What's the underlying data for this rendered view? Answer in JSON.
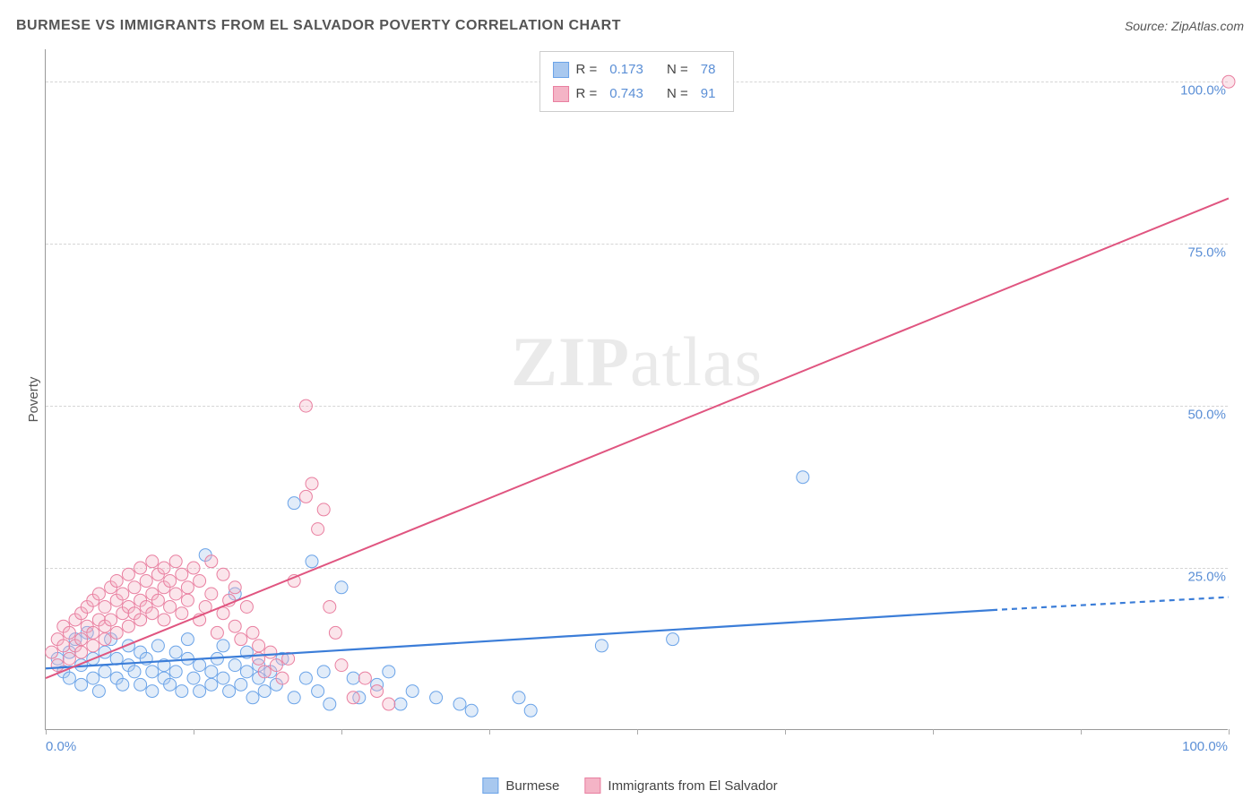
{
  "header": {
    "title": "BURMESE VS IMMIGRANTS FROM EL SALVADOR POVERTY CORRELATION CHART",
    "source_prefix": "Source: ",
    "source": "ZipAtlas.com"
  },
  "watermark": {
    "part1": "ZIP",
    "part2": "atlas"
  },
  "chart": {
    "type": "scatter",
    "ylabel": "Poverty",
    "xlim": [
      0,
      100
    ],
    "ylim": [
      0,
      105
    ],
    "background_color": "#ffffff",
    "grid_color": "#d5d5d5",
    "axis_color": "#999999",
    "tick_label_color": "#5b8fd6",
    "tick_fontsize": 15,
    "ylabel_fontsize": 15,
    "yticks": [
      {
        "value": 25,
        "label": "25.0%"
      },
      {
        "value": 50,
        "label": "50.0%"
      },
      {
        "value": 75,
        "label": "75.0%"
      },
      {
        "value": 100,
        "label": "100.0%"
      }
    ],
    "xtick_label_left": "0.0%",
    "xtick_label_right": "100.0%",
    "xtick_positions": [
      0,
      12.5,
      25,
      37.5,
      50,
      62.5,
      75,
      87.5,
      100
    ],
    "marker_radius": 7,
    "marker_stroke_width": 1,
    "marker_fill_opacity": 0.35,
    "series": [
      {
        "id": "burmese",
        "label": "Burmese",
        "color_stroke": "#6aa3e8",
        "color_fill": "#a8c8ef",
        "R": "0.173",
        "N": "78",
        "regression": {
          "x1": 0,
          "y1": 9.5,
          "x2": 80,
          "y2": 18.5,
          "dash_x2": 100,
          "dash_y2": 20.5,
          "color": "#3b7dd8",
          "width": 2.2
        },
        "points": [
          [
            1,
            11
          ],
          [
            1.5,
            9
          ],
          [
            2,
            12
          ],
          [
            2,
            8
          ],
          [
            2.5,
            14
          ],
          [
            3,
            10
          ],
          [
            3,
            7
          ],
          [
            3.5,
            15
          ],
          [
            4,
            11
          ],
          [
            4,
            8
          ],
          [
            4.5,
            6
          ],
          [
            5,
            12
          ],
          [
            5,
            9
          ],
          [
            5.5,
            14
          ],
          [
            6,
            8
          ],
          [
            6,
            11
          ],
          [
            6.5,
            7
          ],
          [
            7,
            13
          ],
          [
            7,
            10
          ],
          [
            7.5,
            9
          ],
          [
            8,
            12
          ],
          [
            8,
            7
          ],
          [
            8.5,
            11
          ],
          [
            9,
            9
          ],
          [
            9,
            6
          ],
          [
            9.5,
            13
          ],
          [
            10,
            10
          ],
          [
            10,
            8
          ],
          [
            10.5,
            7
          ],
          [
            11,
            12
          ],
          [
            11,
            9
          ],
          [
            11.5,
            6
          ],
          [
            12,
            11
          ],
          [
            12,
            14
          ],
          [
            12.5,
            8
          ],
          [
            13,
            10
          ],
          [
            13,
            6
          ],
          [
            13.5,
            27
          ],
          [
            14,
            9
          ],
          [
            14,
            7
          ],
          [
            14.5,
            11
          ],
          [
            15,
            8
          ],
          [
            15,
            13
          ],
          [
            15.5,
            6
          ],
          [
            16,
            10
          ],
          [
            16,
            21
          ],
          [
            16.5,
            7
          ],
          [
            17,
            9
          ],
          [
            17,
            12
          ],
          [
            17.5,
            5
          ],
          [
            18,
            10
          ],
          [
            18,
            8
          ],
          [
            18.5,
            6
          ],
          [
            19,
            9
          ],
          [
            19.5,
            7
          ],
          [
            20,
            11
          ],
          [
            21,
            35
          ],
          [
            21,
            5
          ],
          [
            22,
            8
          ],
          [
            22.5,
            26
          ],
          [
            23,
            6
          ],
          [
            23.5,
            9
          ],
          [
            24,
            4
          ],
          [
            25,
            22
          ],
          [
            26,
            8
          ],
          [
            26.5,
            5
          ],
          [
            28,
            7
          ],
          [
            29,
            9
          ],
          [
            30,
            4
          ],
          [
            31,
            6
          ],
          [
            33,
            5
          ],
          [
            35,
            4
          ],
          [
            36,
            3
          ],
          [
            40,
            5
          ],
          [
            41,
            3
          ],
          [
            47,
            13
          ],
          [
            53,
            14
          ],
          [
            64,
            39
          ]
        ]
      },
      {
        "id": "elsalvador",
        "label": "Immigrants from El Salvador",
        "color_stroke": "#e97fa0",
        "color_fill": "#f4b4c6",
        "R": "0.743",
        "N": "91",
        "regression": {
          "x1": 0,
          "y1": 8,
          "x2": 100,
          "y2": 82,
          "color": "#e05580",
          "width": 2
        },
        "points": [
          [
            0.5,
            12
          ],
          [
            1,
            10
          ],
          [
            1,
            14
          ],
          [
            1.5,
            13
          ],
          [
            1.5,
            16
          ],
          [
            2,
            11
          ],
          [
            2,
            15
          ],
          [
            2.5,
            17
          ],
          [
            2.5,
            13
          ],
          [
            3,
            14
          ],
          [
            3,
            18
          ],
          [
            3,
            12
          ],
          [
            3.5,
            16
          ],
          [
            3.5,
            19
          ],
          [
            4,
            15
          ],
          [
            4,
            20
          ],
          [
            4,
            13
          ],
          [
            4.5,
            17
          ],
          [
            4.5,
            21
          ],
          [
            5,
            16
          ],
          [
            5,
            19
          ],
          [
            5,
            14
          ],
          [
            5.5,
            22
          ],
          [
            5.5,
            17
          ],
          [
            6,
            20
          ],
          [
            6,
            15
          ],
          [
            6,
            23
          ],
          [
            6.5,
            18
          ],
          [
            6.5,
            21
          ],
          [
            7,
            19
          ],
          [
            7,
            24
          ],
          [
            7,
            16
          ],
          [
            7.5,
            22
          ],
          [
            7.5,
            18
          ],
          [
            8,
            25
          ],
          [
            8,
            20
          ],
          [
            8,
            17
          ],
          [
            8.5,
            23
          ],
          [
            8.5,
            19
          ],
          [
            9,
            21
          ],
          [
            9,
            26
          ],
          [
            9,
            18
          ],
          [
            9.5,
            24
          ],
          [
            9.5,
            20
          ],
          [
            10,
            22
          ],
          [
            10,
            17
          ],
          [
            10,
            25
          ],
          [
            10.5,
            19
          ],
          [
            10.5,
            23
          ],
          [
            11,
            21
          ],
          [
            11,
            26
          ],
          [
            11.5,
            18
          ],
          [
            11.5,
            24
          ],
          [
            12,
            22
          ],
          [
            12,
            20
          ],
          [
            12.5,
            25
          ],
          [
            13,
            17
          ],
          [
            13,
            23
          ],
          [
            13.5,
            19
          ],
          [
            14,
            26
          ],
          [
            14,
            21
          ],
          [
            14.5,
            15
          ],
          [
            15,
            24
          ],
          [
            15,
            18
          ],
          [
            15.5,
            20
          ],
          [
            16,
            16
          ],
          [
            16,
            22
          ],
          [
            16.5,
            14
          ],
          [
            17,
            19
          ],
          [
            17.5,
            15
          ],
          [
            18,
            11
          ],
          [
            18,
            13
          ],
          [
            18.5,
            9
          ],
          [
            19,
            12
          ],
          [
            19.5,
            10
          ],
          [
            20,
            8
          ],
          [
            20.5,
            11
          ],
          [
            21,
            23
          ],
          [
            22,
            50
          ],
          [
            22,
            36
          ],
          [
            22.5,
            38
          ],
          [
            23,
            31
          ],
          [
            23.5,
            34
          ],
          [
            24,
            19
          ],
          [
            24.5,
            15
          ],
          [
            25,
            10
          ],
          [
            26,
            5
          ],
          [
            27,
            8
          ],
          [
            28,
            6
          ],
          [
            29,
            4
          ],
          [
            100,
            100
          ]
        ]
      }
    ]
  },
  "legend_top": {
    "R_label": "R  =",
    "N_label": "N  ="
  },
  "legend_bottom": {}
}
